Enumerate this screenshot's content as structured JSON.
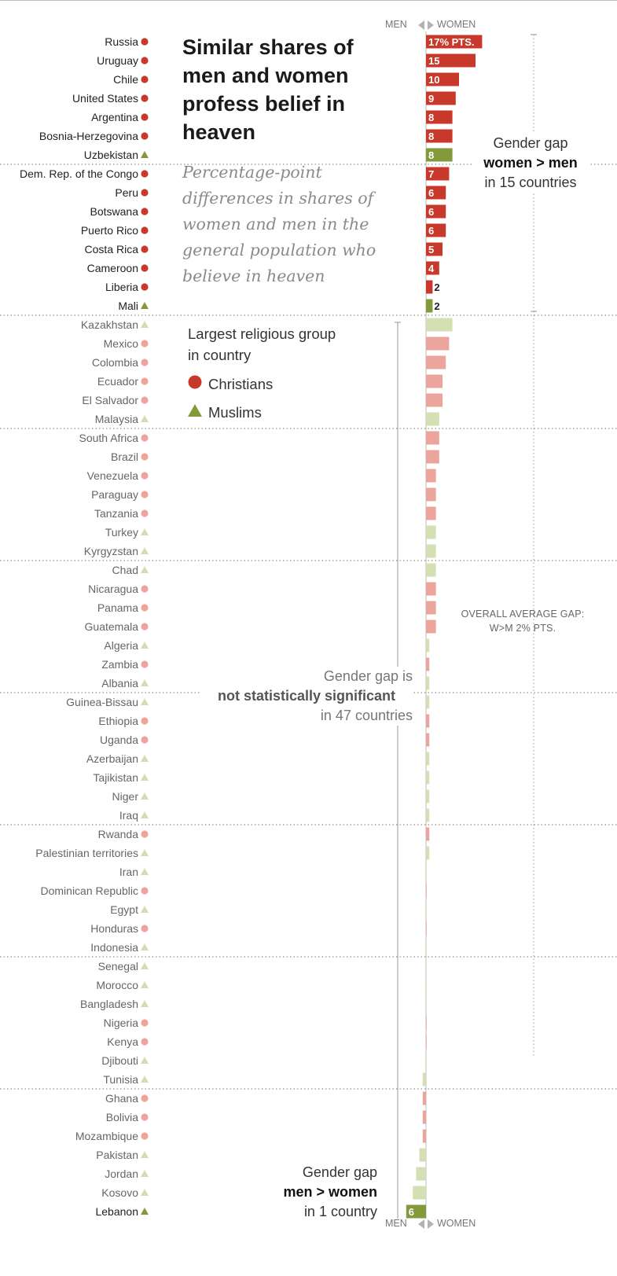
{
  "title": "Similar shares of men and women profess belief in heaven",
  "subtitle": "Percentage-point differences in shares of women and men in the general population who believe in heaven",
  "axis": {
    "left_label": "MEN",
    "right_label": "WOMEN"
  },
  "legend": {
    "title": "Largest religious group in country",
    "items": [
      {
        "label": "Christians",
        "symbol": "circle",
        "color": "#c8392b"
      },
      {
        "label": "Muslims",
        "symbol": "triangle",
        "color": "#829a3a"
      }
    ]
  },
  "annotations": {
    "top": {
      "line1": "Gender gap",
      "bold": "women > men",
      "line3": "in 15 countries"
    },
    "middle": {
      "line1": "Gender gap is",
      "bold": "not statistically significant",
      "line3": "in 47 countries"
    },
    "bottom": {
      "line1": "Gender gap",
      "bold": "men > women",
      "line3": "in 1 country"
    },
    "average": {
      "line1": "OVERALL AVERAGE GAP:",
      "line2": "W>M 2% PTS."
    }
  },
  "colors": {
    "christian_sig": "#c8392b",
    "christian_ns": "#eca59d",
    "muslim_sig": "#829a3a",
    "muslim_ns": "#d5dfb4"
  },
  "chart_data": {
    "type": "bar",
    "orientation": "horizontal",
    "unit": "percentage points (women minus men)",
    "rows": [
      {
        "country": "Russia",
        "value": 17,
        "label": "17% PTS.",
        "group": "Christians",
        "significant": true
      },
      {
        "country": "Uruguay",
        "value": 15,
        "label": "15",
        "group": "Christians",
        "significant": true
      },
      {
        "country": "Chile",
        "value": 10,
        "label": "10",
        "group": "Christians",
        "significant": true
      },
      {
        "country": "United States",
        "value": 9,
        "label": "9",
        "group": "Christians",
        "significant": true
      },
      {
        "country": "Argentina",
        "value": 8,
        "label": "8",
        "group": "Christians",
        "significant": true
      },
      {
        "country": "Bosnia-Herzegovina",
        "value": 8,
        "label": "8",
        "group": "Christians",
        "significant": true
      },
      {
        "country": "Uzbekistan",
        "value": 8,
        "label": "8",
        "group": "Muslims",
        "significant": true
      },
      {
        "country": "Dem. Rep. of the Congo",
        "value": 7,
        "label": "7",
        "group": "Christians",
        "significant": true
      },
      {
        "country": "Peru",
        "value": 6,
        "label": "6",
        "group": "Christians",
        "significant": true
      },
      {
        "country": "Botswana",
        "value": 6,
        "label": "6",
        "group": "Christians",
        "significant": true
      },
      {
        "country": "Puerto Rico",
        "value": 6,
        "label": "6",
        "group": "Christians",
        "significant": true
      },
      {
        "country": "Costa Rica",
        "value": 5,
        "label": "5",
        "group": "Christians",
        "significant": true
      },
      {
        "country": "Cameroon",
        "value": 4,
        "label": "4",
        "group": "Christians",
        "significant": true
      },
      {
        "country": "Liberia",
        "value": 2,
        "label": "2",
        "group": "Christians",
        "significant": true
      },
      {
        "country": "Mali",
        "value": 2,
        "label": "2",
        "group": "Muslims",
        "significant": true
      },
      {
        "country": "Kazakhstan",
        "value": 8,
        "group": "Muslims",
        "significant": false
      },
      {
        "country": "Mexico",
        "value": 7,
        "group": "Christians",
        "significant": false
      },
      {
        "country": "Colombia",
        "value": 6,
        "group": "Christians",
        "significant": false
      },
      {
        "country": "Ecuador",
        "value": 5,
        "group": "Christians",
        "significant": false
      },
      {
        "country": "El Salvador",
        "value": 5,
        "group": "Christians",
        "significant": false
      },
      {
        "country": "Malaysia",
        "value": 4,
        "group": "Muslims",
        "significant": false
      },
      {
        "country": "South Africa",
        "value": 4,
        "group": "Christians",
        "significant": false
      },
      {
        "country": "Brazil",
        "value": 4,
        "group": "Christians",
        "significant": false
      },
      {
        "country": "Venezuela",
        "value": 3,
        "group": "Christians",
        "significant": false
      },
      {
        "country": "Paraguay",
        "value": 3,
        "group": "Christians",
        "significant": false
      },
      {
        "country": "Tanzania",
        "value": 3,
        "group": "Christians",
        "significant": false
      },
      {
        "country": "Turkey",
        "value": 3,
        "group": "Muslims",
        "significant": false
      },
      {
        "country": "Kyrgyzstan",
        "value": 3,
        "group": "Muslims",
        "significant": false
      },
      {
        "country": "Chad",
        "value": 3,
        "group": "Muslims",
        "significant": false
      },
      {
        "country": "Nicaragua",
        "value": 3,
        "group": "Christians",
        "significant": false
      },
      {
        "country": "Panama",
        "value": 3,
        "group": "Christians",
        "significant": false
      },
      {
        "country": "Guatemala",
        "value": 3,
        "group": "Christians",
        "significant": false
      },
      {
        "country": "Algeria",
        "value": 1,
        "group": "Muslims",
        "significant": false
      },
      {
        "country": "Zambia",
        "value": 1,
        "group": "Christians",
        "significant": false
      },
      {
        "country": "Albania",
        "value": 1,
        "group": "Muslims",
        "significant": false
      },
      {
        "country": "Guinea-Bissau",
        "value": 1,
        "group": "Muslims",
        "significant": false
      },
      {
        "country": "Ethiopia",
        "value": 1,
        "group": "Christians",
        "significant": false
      },
      {
        "country": "Uganda",
        "value": 1,
        "group": "Christians",
        "significant": false
      },
      {
        "country": "Azerbaijan",
        "value": 1,
        "group": "Muslims",
        "significant": false
      },
      {
        "country": "Tajikistan",
        "value": 1,
        "group": "Muslims",
        "significant": false
      },
      {
        "country": "Niger",
        "value": 1,
        "group": "Muslims",
        "significant": false
      },
      {
        "country": "Iraq",
        "value": 1,
        "group": "Muslims",
        "significant": false
      },
      {
        "country": "Rwanda",
        "value": 1,
        "group": "Christians",
        "significant": false
      },
      {
        "country": "Palestinian territories",
        "value": 1,
        "group": "Muslims",
        "significant": false
      },
      {
        "country": "Iran",
        "value": 0,
        "group": "Muslims",
        "significant": false
      },
      {
        "country": "Dominican Republic",
        "value": 0.2,
        "group": "Christians",
        "significant": false
      },
      {
        "country": "Egypt",
        "value": 0,
        "group": "Muslims",
        "significant": false
      },
      {
        "country": "Honduras",
        "value": 0.2,
        "group": "Christians",
        "significant": false
      },
      {
        "country": "Indonesia",
        "value": 0,
        "group": "Muslims",
        "significant": false
      },
      {
        "country": "Senegal",
        "value": 0,
        "group": "Muslims",
        "significant": false
      },
      {
        "country": "Morocco",
        "value": 0,
        "group": "Muslims",
        "significant": false
      },
      {
        "country": "Bangladesh",
        "value": 0,
        "group": "Muslims",
        "significant": false
      },
      {
        "country": "Nigeria",
        "value": 0.2,
        "group": "Christians",
        "significant": false
      },
      {
        "country": "Kenya",
        "value": 0.2,
        "group": "Christians",
        "significant": false
      },
      {
        "country": "Djibouti",
        "value": 0,
        "group": "Muslims",
        "significant": false
      },
      {
        "country": "Tunisia",
        "value": -1,
        "group": "Muslims",
        "significant": false
      },
      {
        "country": "Ghana",
        "value": -1,
        "group": "Christians",
        "significant": false
      },
      {
        "country": "Bolivia",
        "value": -1,
        "group": "Christians",
        "significant": false
      },
      {
        "country": "Mozambique",
        "value": -1,
        "group": "Christians",
        "significant": false
      },
      {
        "country": "Pakistan",
        "value": -2,
        "group": "Muslims",
        "significant": false
      },
      {
        "country": "Jordan",
        "value": -3,
        "group": "Muslims",
        "significant": false
      },
      {
        "country": "Kosovo",
        "value": -4,
        "group": "Muslims",
        "significant": false
      },
      {
        "country": "Lebanon",
        "value": -6,
        "label": "6",
        "group": "Muslims",
        "significant": true
      }
    ]
  }
}
